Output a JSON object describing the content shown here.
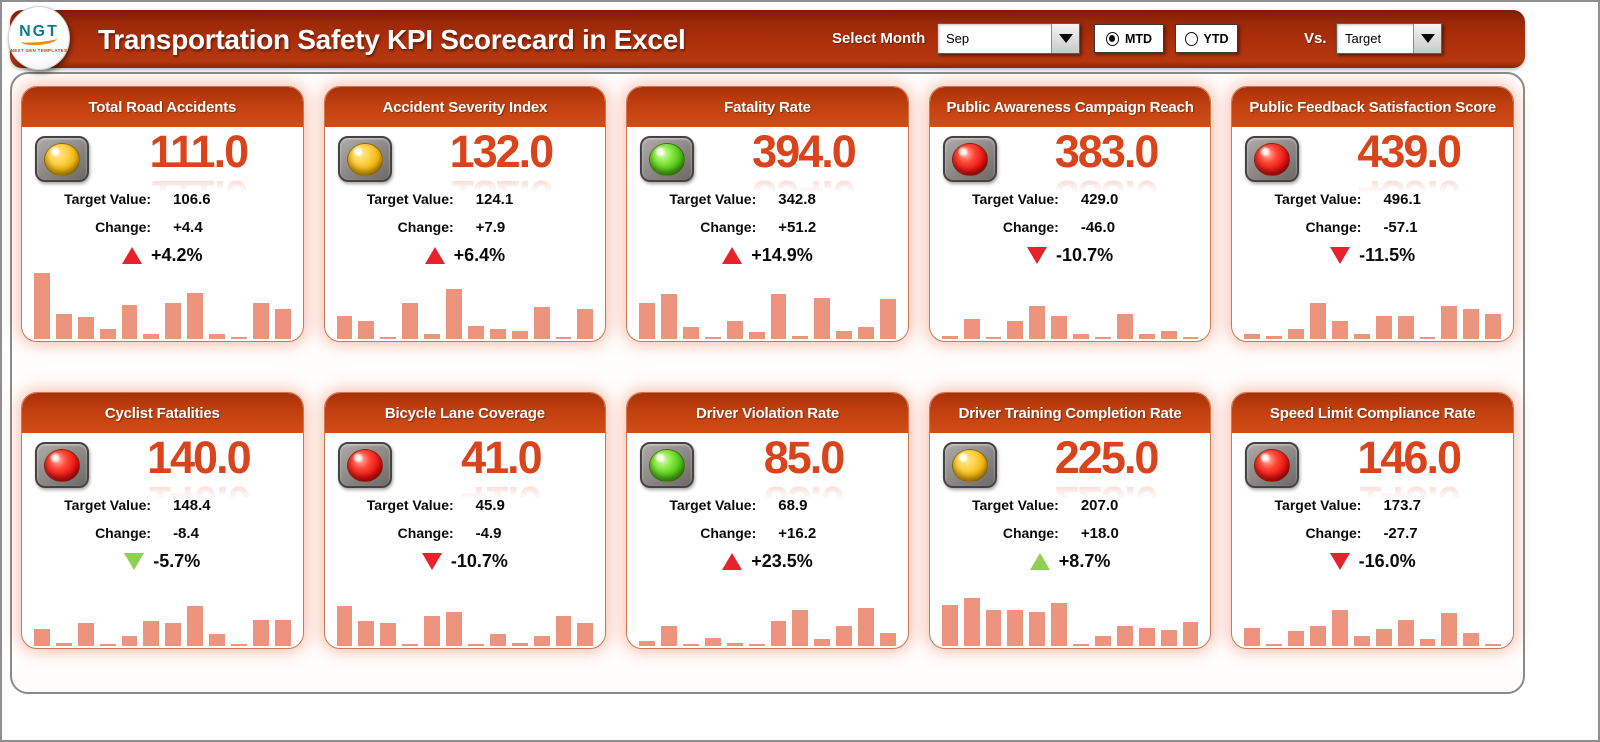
{
  "header": {
    "logo_text": "NGT",
    "logo_subtext": "NEXT GEN TEMPLATES",
    "title": "Transportation Safety KPI Scorecard in Excel",
    "select_month_label": "Select Month",
    "month_value": "Sep",
    "mtd_label": "MTD",
    "ytd_label": "YTD",
    "mtd_selected": true,
    "vs_label": "Vs.",
    "vs_value": "Target"
  },
  "labels": {
    "target_value": "Target Value:",
    "change": "Change:"
  },
  "colors": {
    "header_red": "#a52a0a",
    "card_header": "#c2400f",
    "value_text": "#d9441c",
    "bar": "#ec947e",
    "arrow_red": "#e8212b",
    "arrow_green": "#8ed050",
    "light_yellow": "#f1b40a",
    "light_green": "#4cc017",
    "light_red": "#e81212"
  },
  "cards": [
    {
      "title": "Total Road Accidents",
      "value": "111.0",
      "light": "yellow",
      "target": "106.6",
      "change": "+4.4",
      "pct": "+4.2%",
      "arrow": "up",
      "arrow_color": "red",
      "bars": [
        100,
        38,
        33,
        15,
        52,
        8,
        55,
        70,
        7,
        2,
        55,
        45
      ]
    },
    {
      "title": "Accident Severity Index",
      "value": "132.0",
      "light": "yellow",
      "target": "124.1",
      "change": "+7.9",
      "pct": "+6.4%",
      "arrow": "up",
      "arrow_color": "red",
      "bars": [
        35,
        28,
        2,
        55,
        8,
        75,
        20,
        15,
        12,
        48,
        2,
        45
      ]
    },
    {
      "title": "Fatality Rate",
      "value": "394.0",
      "light": "green",
      "target": "342.8",
      "change": "+51.2",
      "pct": "+14.9%",
      "arrow": "up",
      "arrow_color": "red",
      "bars": [
        55,
        68,
        18,
        2,
        28,
        10,
        68,
        5,
        62,
        12,
        18,
        60
      ]
    },
    {
      "title": "Public Awareness Campaign Reach",
      "value": "383.0",
      "light": "red",
      "target": "429.0",
      "change": "-46.0",
      "pct": "-10.7%",
      "arrow": "down",
      "arrow_color": "red",
      "bars": [
        5,
        30,
        2,
        28,
        50,
        35,
        8,
        2,
        38,
        8,
        12,
        2
      ]
    },
    {
      "title": "Public Feedback Satisfaction Score",
      "value": "439.0",
      "light": "red",
      "target": "496.1",
      "change": "-57.1",
      "pct": "-11.5%",
      "arrow": "down",
      "arrow_color": "red",
      "bars": [
        8,
        5,
        15,
        55,
        28,
        8,
        35,
        35,
        2,
        50,
        45,
        38
      ]
    },
    {
      "title": "Cyclist Fatalities",
      "value": "140.0",
      "light": "red",
      "target": "148.4",
      "change": "-8.4",
      "pct": "-5.7%",
      "arrow": "down",
      "arrow_color": "green",
      "bars": [
        25,
        5,
        35,
        2,
        15,
        38,
        35,
        60,
        18,
        2,
        40,
        40
      ]
    },
    {
      "title": "Bicycle Lane Coverage",
      "value": "41.0",
      "light": "red",
      "target": "45.9",
      "change": "-4.9",
      "pct": "-10.7%",
      "arrow": "down",
      "arrow_color": "red",
      "bars": [
        60,
        38,
        35,
        2,
        45,
        52,
        2,
        18,
        5,
        15,
        45,
        35
      ]
    },
    {
      "title": "Driver Violation Rate",
      "value": "85.0",
      "light": "green",
      "target": "68.9",
      "change": "+16.2",
      "pct": "+23.5%",
      "arrow": "up",
      "arrow_color": "red",
      "bars": [
        8,
        30,
        2,
        12,
        5,
        2,
        38,
        55,
        10,
        30,
        58,
        20
      ]
    },
    {
      "title": "Driver Training Completion Rate",
      "value": "225.0",
      "light": "yellow",
      "target": "207.0",
      "change": "+18.0",
      "pct": "+8.7%",
      "arrow": "up",
      "arrow_color": "green",
      "bars": [
        62,
        72,
        55,
        55,
        52,
        65,
        2,
        15,
        30,
        28,
        24,
        36
      ]
    },
    {
      "title": "Speed Limit Compliance Rate",
      "value": "146.0",
      "light": "red",
      "target": "173.7",
      "change": "-27.7",
      "pct": "-16.0%",
      "arrow": "down",
      "arrow_color": "red",
      "bars": [
        28,
        3,
        22,
        30,
        55,
        15,
        25,
        40,
        10,
        50,
        20,
        2
      ]
    }
  ]
}
